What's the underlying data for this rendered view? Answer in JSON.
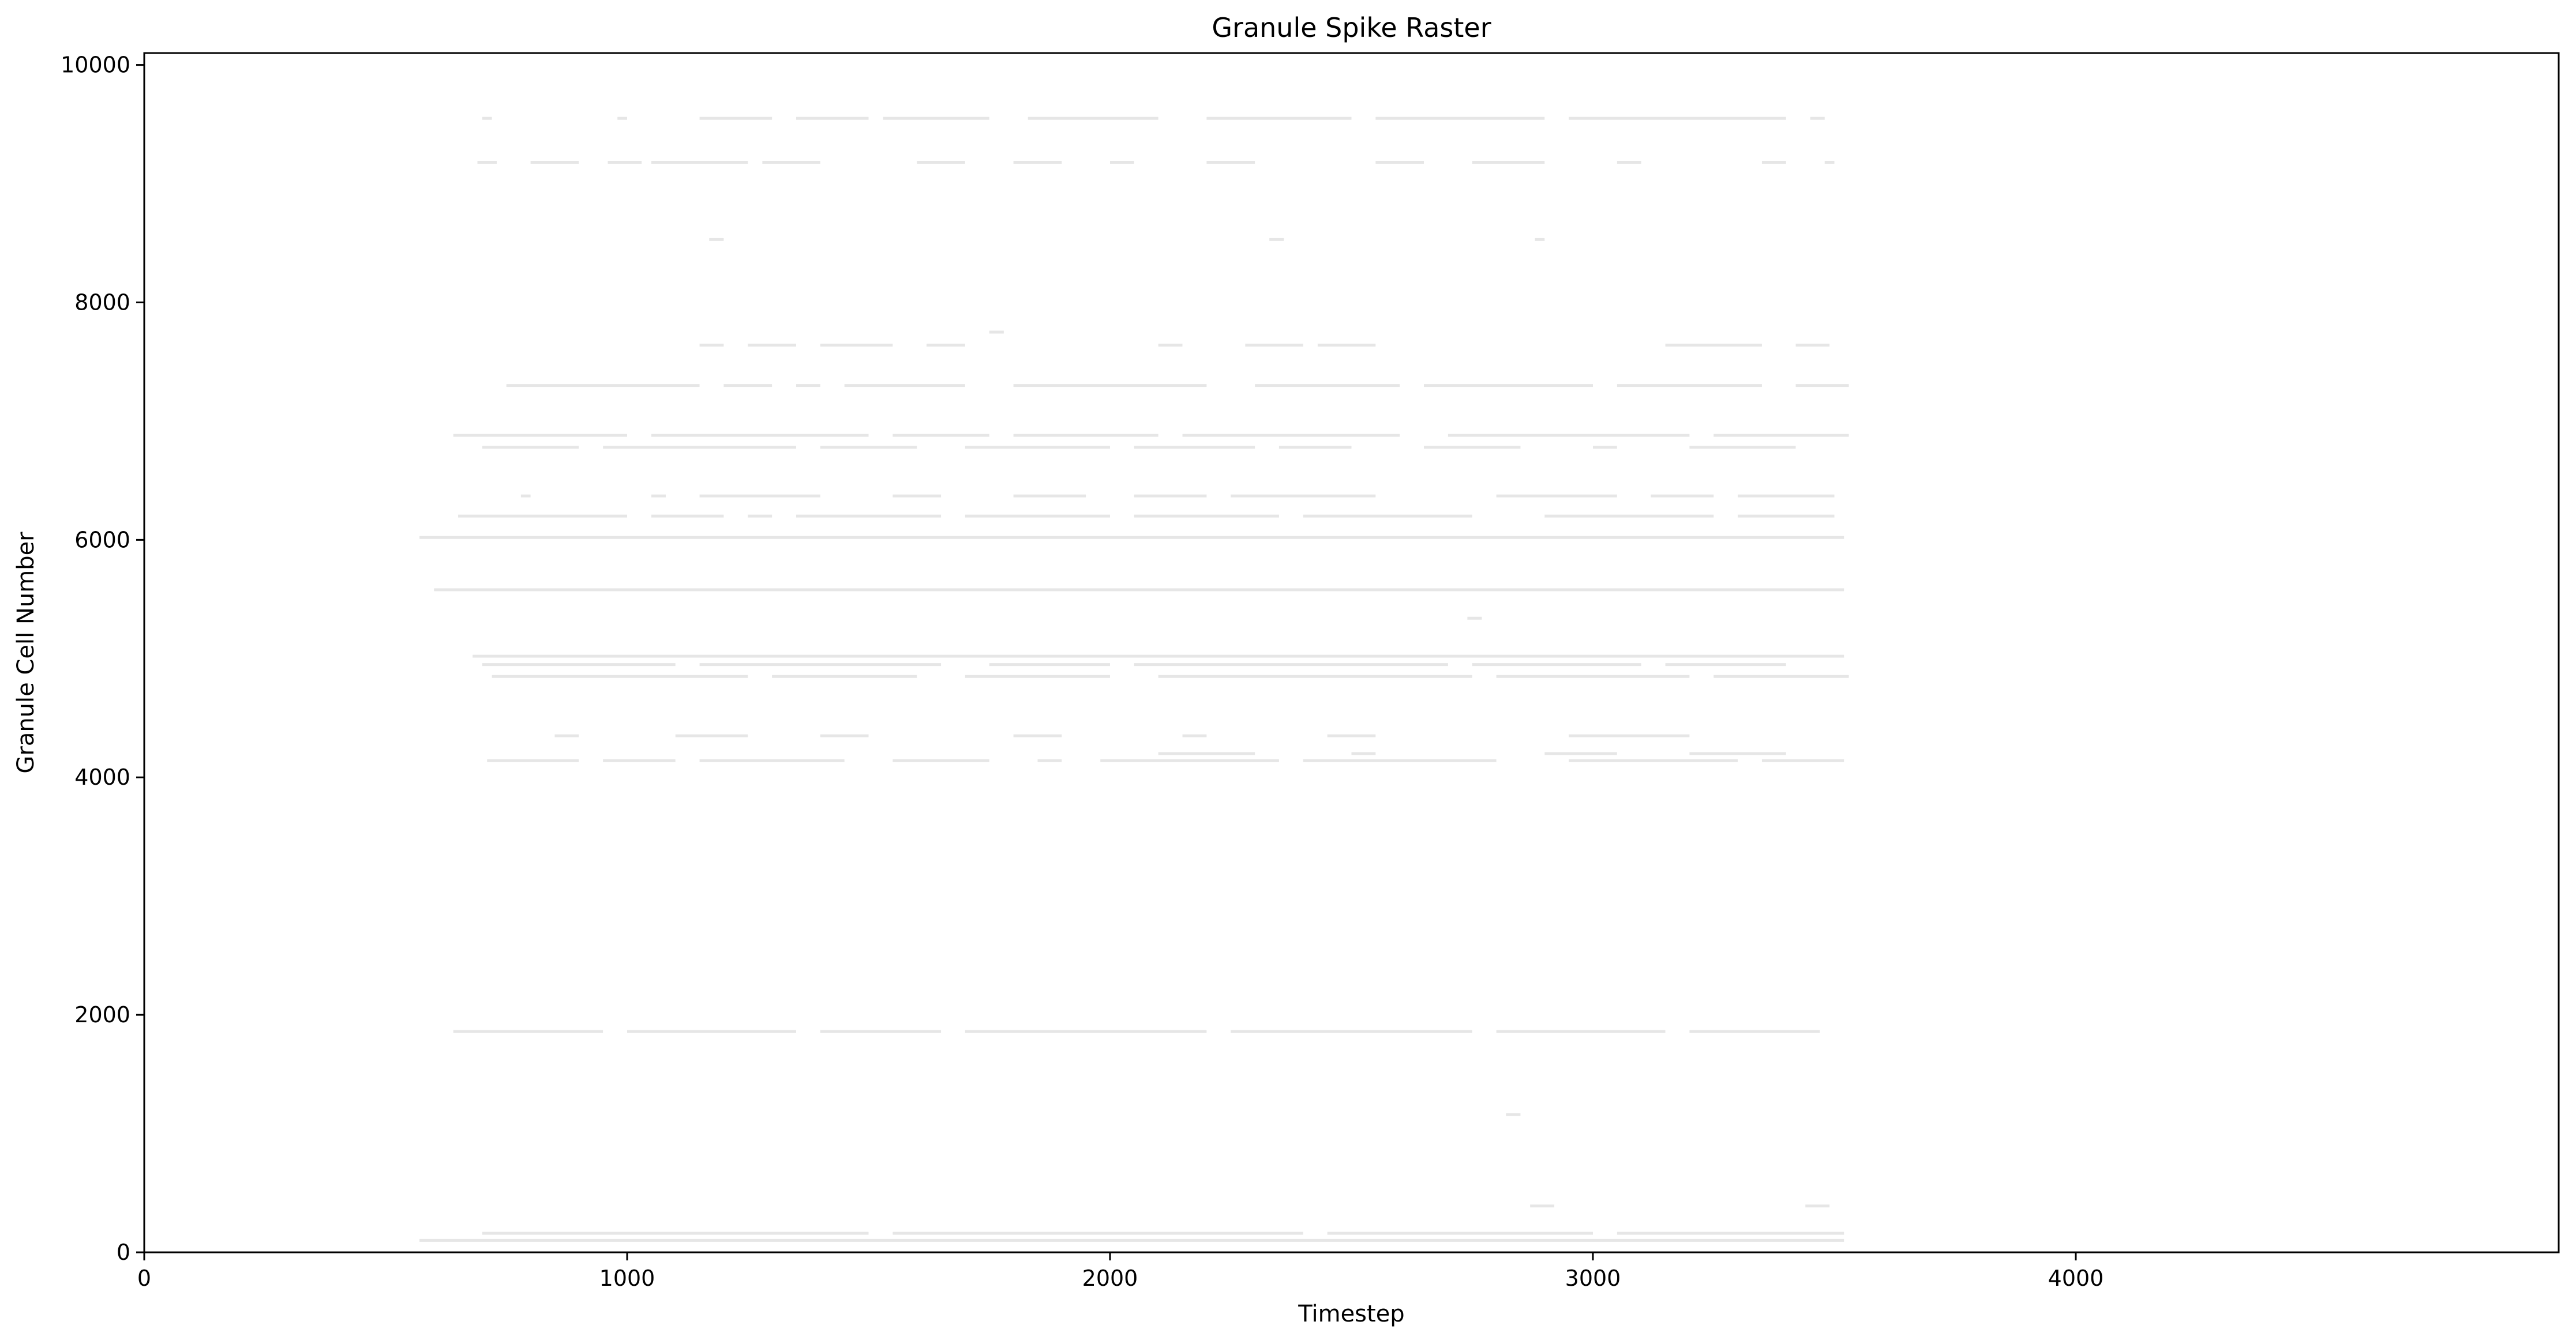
{
  "chart_data": {
    "type": "scatter",
    "title": "Granule Spike Raster",
    "xlabel": "Timestep",
    "ylabel": "Granule Cell Number",
    "xlim": [
      0,
      5000
    ],
    "ylim": [
      0,
      10100
    ],
    "xticks": [
      0,
      1000,
      2000,
      3000,
      4000
    ],
    "yticks": [
      0,
      2000,
      4000,
      6000,
      8000,
      10000
    ],
    "grid": false,
    "legend": "none",
    "marker": "vertical-tick",
    "marker_color": "#e6e6e6",
    "raster_rows": [
      {
        "cell": 9550,
        "segments": [
          [
            700,
            720
          ],
          [
            980,
            1000
          ],
          [
            1150,
            1300
          ],
          [
            1350,
            1500
          ],
          [
            1530,
            1750
          ],
          [
            1830,
            2100
          ],
          [
            2200,
            2500
          ],
          [
            2550,
            2900
          ],
          [
            2950,
            3400
          ],
          [
            3450,
            3480
          ]
        ]
      },
      {
        "cell": 9180,
        "segments": [
          [
            690,
            730
          ],
          [
            800,
            900
          ],
          [
            960,
            1030
          ],
          [
            1050,
            1250
          ],
          [
            1280,
            1400
          ],
          [
            1600,
            1700
          ],
          [
            1800,
            1900
          ],
          [
            2000,
            2050
          ],
          [
            2200,
            2300
          ],
          [
            2550,
            2650
          ],
          [
            2750,
            2900
          ],
          [
            3050,
            3100
          ],
          [
            3350,
            3400
          ],
          [
            3480,
            3500
          ]
        ]
      },
      {
        "cell": 8530,
        "segments": [
          [
            1170,
            1200
          ],
          [
            2330,
            2360
          ],
          [
            2880,
            2900
          ]
        ]
      },
      {
        "cell": 7750,
        "segments": [
          [
            1750,
            1780
          ]
        ]
      },
      {
        "cell": 7640,
        "segments": [
          [
            1150,
            1200
          ],
          [
            1250,
            1350
          ],
          [
            1400,
            1550
          ],
          [
            1620,
            1700
          ],
          [
            2100,
            2150
          ],
          [
            2280,
            2400
          ],
          [
            2430,
            2550
          ],
          [
            3150,
            3350
          ],
          [
            3420,
            3490
          ]
        ]
      },
      {
        "cell": 7300,
        "segments": [
          [
            750,
            1150
          ],
          [
            1200,
            1300
          ],
          [
            1350,
            1400
          ],
          [
            1450,
            1700
          ],
          [
            1800,
            2200
          ],
          [
            2300,
            2600
          ],
          [
            2650,
            3000
          ],
          [
            3050,
            3350
          ],
          [
            3420,
            3530
          ]
        ]
      },
      {
        "cell": 6880,
        "segments": [
          [
            640,
            1000
          ],
          [
            1050,
            1500
          ],
          [
            1550,
            1750
          ],
          [
            1800,
            2100
          ],
          [
            2150,
            2600
          ],
          [
            2700,
            3200
          ],
          [
            3250,
            3530
          ]
        ]
      },
      {
        "cell": 6780,
        "segments": [
          [
            700,
            900
          ],
          [
            950,
            1350
          ],
          [
            1400,
            1600
          ],
          [
            1700,
            2000
          ],
          [
            2050,
            2300
          ],
          [
            2350,
            2500
          ],
          [
            2650,
            2850
          ],
          [
            3000,
            3050
          ],
          [
            3200,
            3420
          ]
        ]
      },
      {
        "cell": 6370,
        "segments": [
          [
            780,
            800
          ],
          [
            1050,
            1080
          ],
          [
            1150,
            1400
          ],
          [
            1550,
            1650
          ],
          [
            1800,
            1950
          ],
          [
            2050,
            2200
          ],
          [
            2250,
            2550
          ],
          [
            2800,
            3050
          ],
          [
            3120,
            3250
          ],
          [
            3300,
            3500
          ]
        ]
      },
      {
        "cell": 6200,
        "segments": [
          [
            650,
            1000
          ],
          [
            1050,
            1200
          ],
          [
            1250,
            1300
          ],
          [
            1350,
            1650
          ],
          [
            1700,
            2000
          ],
          [
            2050,
            2350
          ],
          [
            2400,
            2750
          ],
          [
            2900,
            3250
          ],
          [
            3300,
            3500
          ]
        ]
      },
      {
        "cell": 6020,
        "segments": [
          [
            570,
            3520
          ]
        ]
      },
      {
        "cell": 5580,
        "segments": [
          [
            600,
            3520
          ]
        ]
      },
      {
        "cell": 5340,
        "segments": [
          [
            2740,
            2770
          ]
        ]
      },
      {
        "cell": 5020,
        "segments": [
          [
            680,
            3520
          ]
        ]
      },
      {
        "cell": 4950,
        "segments": [
          [
            700,
            1100
          ],
          [
            1150,
            1650
          ],
          [
            1750,
            2000
          ],
          [
            2050,
            2700
          ],
          [
            2750,
            3100
          ],
          [
            3150,
            3400
          ]
        ]
      },
      {
        "cell": 4850,
        "segments": [
          [
            720,
            1250
          ],
          [
            1300,
            1600
          ],
          [
            1700,
            2000
          ],
          [
            2100,
            2750
          ],
          [
            2800,
            3200
          ],
          [
            3250,
            3530
          ]
        ]
      },
      {
        "cell": 4350,
        "segments": [
          [
            850,
            900
          ],
          [
            1100,
            1250
          ],
          [
            1400,
            1500
          ],
          [
            1800,
            1900
          ],
          [
            2150,
            2200
          ],
          [
            2450,
            2550
          ],
          [
            2950,
            3200
          ]
        ]
      },
      {
        "cell": 4200,
        "segments": [
          [
            2100,
            2300
          ],
          [
            2500,
            2550
          ],
          [
            2900,
            3050
          ],
          [
            3200,
            3400
          ]
        ]
      },
      {
        "cell": 4140,
        "segments": [
          [
            710,
            900
          ],
          [
            950,
            1100
          ],
          [
            1150,
            1450
          ],
          [
            1550,
            1750
          ],
          [
            1850,
            1900
          ],
          [
            1980,
            2350
          ],
          [
            2400,
            2800
          ],
          [
            2950,
            3300
          ],
          [
            3350,
            3520
          ]
        ]
      },
      {
        "cell": 1860,
        "segments": [
          [
            640,
            950
          ],
          [
            1000,
            1350
          ],
          [
            1400,
            1650
          ],
          [
            1700,
            2200
          ],
          [
            2250,
            2750
          ],
          [
            2800,
            3150
          ],
          [
            3200,
            3470
          ]
        ]
      },
      {
        "cell": 1160,
        "segments": [
          [
            2820,
            2850
          ]
        ]
      },
      {
        "cell": 390,
        "segments": [
          [
            2870,
            2920
          ],
          [
            3440,
            3490
          ]
        ]
      },
      {
        "cell": 160,
        "segments": [
          [
            700,
            1500
          ],
          [
            1550,
            2400
          ],
          [
            2450,
            3000
          ],
          [
            3050,
            3520
          ]
        ]
      },
      {
        "cell": 100,
        "segments": [
          [
            570,
            3520
          ]
        ]
      }
    ]
  }
}
